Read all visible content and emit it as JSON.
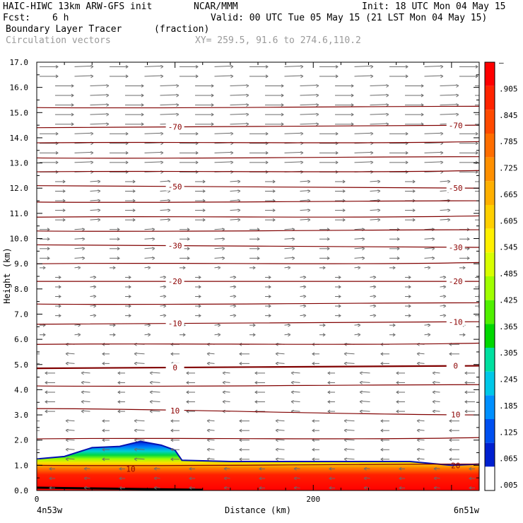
{
  "header": {
    "title_left": "HAIC-HIWC 13km ARW-GFS init",
    "title_center": "NCAR/MMM",
    "init": "Init: 18 UTC Mon 04 May 15",
    "fcst_label": "Fcst:",
    "fcst_value": "6 h",
    "valid": "Valid: 00 UTC Tue 05 May 15 (21 LST Mon 04 May 15)",
    "field_name": "Boundary Layer Tracer",
    "field_units": "(fraction)",
    "vector_name": "Circulation vectors",
    "xy_range": "XY= 259.5, 91.6 to 274.6,110.2"
  },
  "chart_data": {
    "type": "contour",
    "xlabel": "Distance (km)",
    "ylabel": "Height (km)",
    "x_start_label": "4n53w",
    "x_end_label": "6n51w",
    "x_ticks": [
      0,
      200
    ],
    "xlim": [
      0,
      320
    ],
    "ylim": [
      0,
      17
    ],
    "y_ticks": [
      "0.0",
      "1.0",
      "2.0",
      "3.0",
      "4.0",
      "5.0",
      "6.0",
      "7.0",
      "8.0",
      "9.0",
      "10.0",
      "11.0",
      "12.0",
      "13.0",
      "14.0",
      "15.0",
      "16.0",
      "17.0"
    ],
    "colorbar_labels": [
      "–",
      ".905",
      ".845",
      ".785",
      ".725",
      ".665",
      ".605",
      ".545",
      ".485",
      ".425",
      ".365",
      ".305",
      ".245",
      ".185",
      ".125",
      ".065",
      ".005"
    ],
    "colorbar_colors": [
      "#ff0000",
      "#ff2400",
      "#ff4a00",
      "#ff6e00",
      "#ff9000",
      "#ffb000",
      "#ffd000",
      "#fff000",
      "#d8ff00",
      "#a0ff00",
      "#50f000",
      "#00d800",
      "#00e0a0",
      "#00c8e8",
      "#0090ff",
      "#0050f0",
      "#0020d0",
      "#ffffff"
    ],
    "tracer_top_km": [
      [
        0,
        1.25
      ],
      [
        20,
        1.35
      ],
      [
        40,
        1.7
      ],
      [
        60,
        1.75
      ],
      [
        75,
        1.95
      ],
      [
        90,
        1.8
      ],
      [
        100,
        1.6
      ],
      [
        105,
        1.2
      ],
      [
        140,
        1.15
      ],
      [
        200,
        1.15
      ],
      [
        240,
        1.15
      ],
      [
        270,
        1.15
      ],
      [
        300,
        1.0
      ],
      [
        320,
        1.05
      ]
    ],
    "temperature_contours": [
      {
        "label": "-70",
        "y_left": 14.4,
        "y_right": 14.5,
        "label_x": [
          100,
          303
        ]
      },
      {
        "label": "-50",
        "y_left": 12.1,
        "y_right": 12.0,
        "label_x": [
          100,
          303
        ]
      },
      {
        "label": "-30",
        "y_left": 9.75,
        "y_right": 9.65,
        "label_x": [
          100,
          303
        ]
      },
      {
        "label": "-20",
        "y_left": 8.3,
        "y_right": 8.3,
        "label_x": [
          100,
          303
        ]
      },
      {
        "label": "-10",
        "y_left": 6.6,
        "y_right": 6.7,
        "label_x": [
          100,
          303
        ]
      },
      {
        "label": "0",
        "y_left": 4.85,
        "y_right": 4.95,
        "label_x": [
          100,
          303
        ]
      },
      {
        "label": "10",
        "y_left": 3.25,
        "y_right": 3.0,
        "label_x": [
          100,
          303
        ]
      }
    ],
    "extra_labels": [
      {
        "text": "20",
        "x": 303,
        "y": 1.0
      },
      {
        "text": "10",
        "x": 68,
        "y": 0.85
      }
    ]
  }
}
